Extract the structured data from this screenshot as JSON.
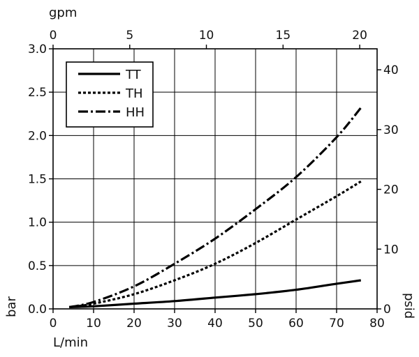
{
  "chart_data": {
    "type": "line",
    "x_axis": {
      "label": "L/min",
      "range": [
        0,
        80
      ],
      "ticks": [
        "0",
        "10",
        "20",
        "30",
        "40",
        "50",
        "60",
        "70",
        "80"
      ]
    },
    "x2_axis": {
      "label": "gpm",
      "range_equivalent_lmin": [
        0,
        80
      ],
      "ticks": [
        {
          "label": "0",
          "lmin": 0
        },
        {
          "label": "5",
          "lmin": 18.93
        },
        {
          "label": "10",
          "lmin": 37.85
        },
        {
          "label": "15",
          "lmin": 56.78
        },
        {
          "label": "20",
          "lmin": 75.71
        }
      ]
    },
    "y_axis": {
      "label": "bar",
      "range": [
        0,
        3.0
      ],
      "ticks": [
        "0.0",
        "0.5",
        "1.0",
        "1.5",
        "2.0",
        "2.5",
        "3.0"
      ]
    },
    "y2_axis": {
      "label": "psid",
      "ticks": [
        {
          "label": "0",
          "bar": 0
        },
        {
          "label": "10",
          "bar": 0.6895
        },
        {
          "label": "20",
          "bar": 1.379
        },
        {
          "label": "30",
          "bar": 2.068
        },
        {
          "label": "40",
          "bar": 2.758
        }
      ]
    },
    "grid": true,
    "legend_position": "top-left",
    "series": [
      {
        "name": "TT",
        "style": "solid",
        "x": [
          4,
          10,
          20,
          30,
          40,
          50,
          60,
          70,
          76
        ],
        "y": [
          0.02,
          0.03,
          0.06,
          0.09,
          0.13,
          0.17,
          0.22,
          0.29,
          0.33
        ]
      },
      {
        "name": "TH",
        "style": "dotted",
        "x": [
          4,
          10,
          20,
          30,
          40,
          50,
          60,
          70,
          76
        ],
        "y": [
          0.02,
          0.06,
          0.17,
          0.33,
          0.52,
          0.76,
          1.03,
          1.3,
          1.47
        ]
      },
      {
        "name": "HH",
        "style": "dashdot",
        "x": [
          4,
          10,
          20,
          30,
          40,
          50,
          60,
          70,
          76
        ],
        "y": [
          0.02,
          0.08,
          0.26,
          0.52,
          0.81,
          1.15,
          1.52,
          1.98,
          2.32
        ]
      }
    ]
  }
}
